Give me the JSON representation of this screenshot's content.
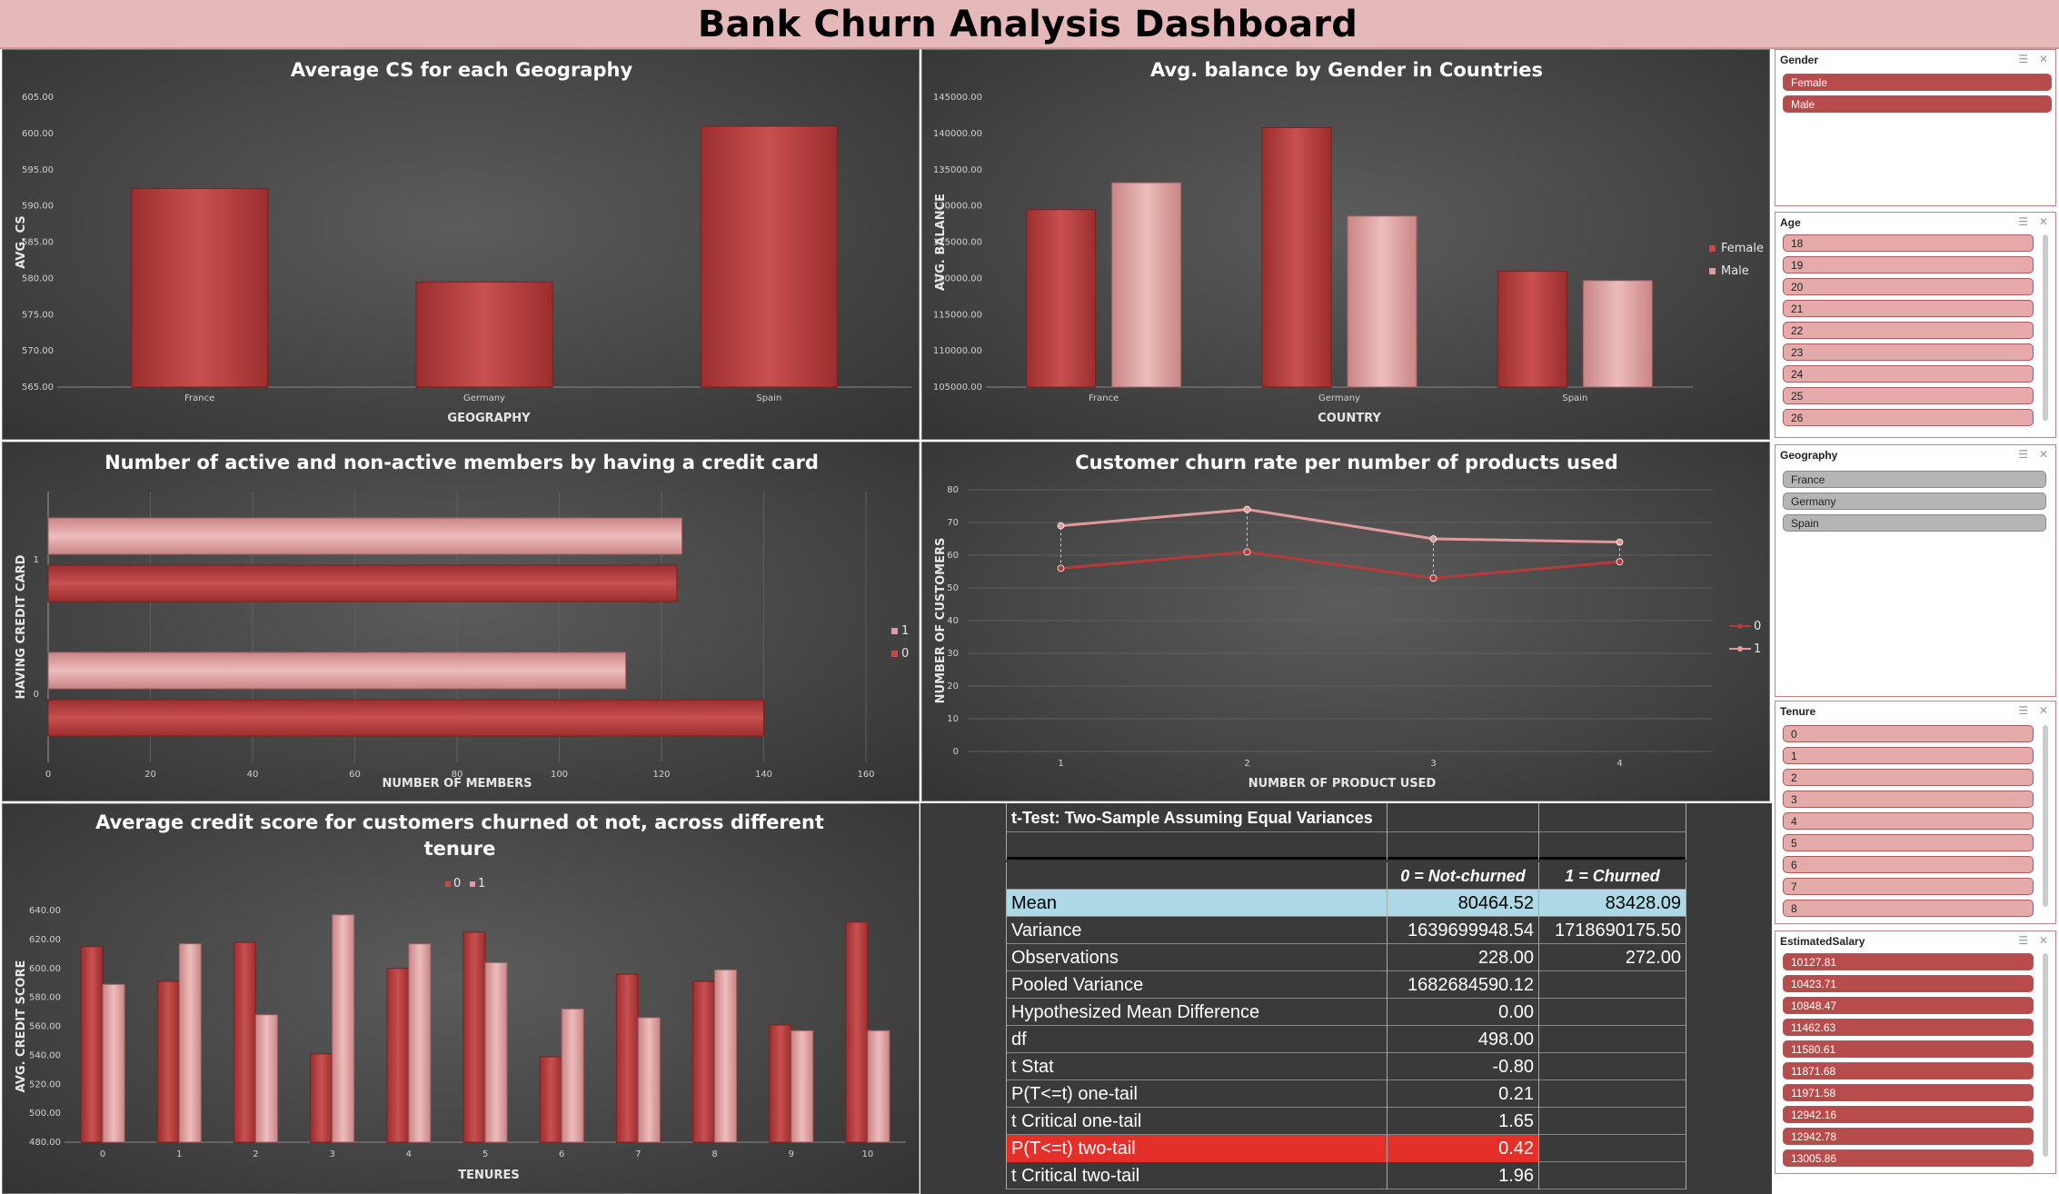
{
  "dashboard_title": "Bank Churn Analysis Dashboard",
  "colors": {
    "dark_red": "#b84040",
    "light_pink": "#dba0a0",
    "highlight_row": "#add8e6",
    "highlight_red": "#e5302a"
  },
  "chart_data": [
    {
      "type": "bar",
      "title": "Average CS for each Geography",
      "xlabel": "GEOGRAPHY",
      "ylabel": "AVG. CS",
      "categories": [
        "France",
        "Germany",
        "Spain"
      ],
      "values": [
        592.4,
        579.5,
        601.0
      ],
      "ylim": [
        565,
        605
      ],
      "yticks": [
        "565.00",
        "570.00",
        "575.00",
        "580.00",
        "585.00",
        "590.00",
        "595.00",
        "600.00",
        "605.00"
      ],
      "grid": false
    },
    {
      "type": "bar",
      "title": "Avg. balance by Gender in Countries",
      "xlabel": "COUNTRY",
      "ylabel": "AVG. BALANCE",
      "categories": [
        "France",
        "Germany",
        "Spain"
      ],
      "series": [
        {
          "name": "Female",
          "values": [
            129500,
            140800,
            121000
          ]
        },
        {
          "name": "Male",
          "values": [
            133200,
            128600,
            119700
          ]
        }
      ],
      "ylim": [
        105000,
        145000
      ],
      "yticks": [
        "105000.00",
        "110000.00",
        "115000.00",
        "120000.00",
        "125000.00",
        "130000.00",
        "135000.00",
        "140000.00",
        "145000.00"
      ],
      "legend": "right",
      "grid": false
    },
    {
      "type": "bar",
      "orientation": "horizontal",
      "title": "Number of active and non-active members by having a credit card",
      "xlabel": "NUMBER OF MEMBERS",
      "ylabel": "HAVING CREDIT CARD",
      "categories": [
        "0",
        "1"
      ],
      "series": [
        {
          "name": "1",
          "values": [
            113,
            124
          ]
        },
        {
          "name": "0",
          "values": [
            140,
            123
          ]
        }
      ],
      "xlim": [
        0,
        160
      ],
      "xticks": [
        "0",
        "20",
        "40",
        "60",
        "80",
        "100",
        "120",
        "140",
        "160"
      ],
      "legend": "right",
      "grid": true
    },
    {
      "type": "line",
      "title": "Customer churn rate per number of products used",
      "xlabel": "NUMBER OF PRODUCT USED",
      "ylabel": "NUMBER OF CUSTOMERS",
      "categories": [
        "1",
        "2",
        "3",
        "4"
      ],
      "series": [
        {
          "name": "0",
          "values": [
            56,
            61,
            53,
            58
          ]
        },
        {
          "name": "1",
          "values": [
            69,
            74,
            65,
            64
          ]
        }
      ],
      "ylim": [
        0,
        80
      ],
      "yticks": [
        "0",
        "10",
        "20",
        "30",
        "40",
        "50",
        "60",
        "70",
        "80"
      ],
      "legend": "right",
      "grid": true
    },
    {
      "type": "bar",
      "title": "Average credit score for customers churned ot not, across different tenure",
      "xlabel": "TENURES",
      "ylabel": "AVG. CREDIT SCORE",
      "categories": [
        "0",
        "1",
        "2",
        "3",
        "4",
        "5",
        "6",
        "7",
        "8",
        "9",
        "10"
      ],
      "series": [
        {
          "name": "0",
          "values": [
            615,
            591,
            618,
            541,
            600,
            625,
            539,
            596,
            591,
            561,
            632
          ]
        },
        {
          "name": "1",
          "values": [
            589,
            617,
            568,
            637,
            617,
            604,
            572,
            566,
            599,
            557,
            557
          ]
        }
      ],
      "ylim": [
        480,
        640
      ],
      "yticks": [
        "480.00",
        "500.00",
        "520.00",
        "540.00",
        "560.00",
        "580.00",
        "600.00",
        "620.00",
        "640.00"
      ],
      "legend": "top",
      "grid": false
    }
  ],
  "ttest": {
    "title": "t-Test: Two-Sample Assuming Equal Variances",
    "col1": "0 = Not-churned",
    "col2": "1 = Churned",
    "rows": [
      {
        "label": "Mean",
        "v1": "80464.52",
        "v2": "83428.09"
      },
      {
        "label": "Variance",
        "v1": "1639699948.54",
        "v2": "1718690175.50"
      },
      {
        "label": "Observations",
        "v1": "228.00",
        "v2": "272.00"
      },
      {
        "label": "Pooled Variance",
        "v1": "1682684590.12",
        "v2": ""
      },
      {
        "label": "Hypothesized Mean Difference",
        "v1": "0.00",
        "v2": ""
      },
      {
        "label": "df",
        "v1": "498.00",
        "v2": ""
      },
      {
        "label": "t Stat",
        "v1": "-0.80",
        "v2": ""
      },
      {
        "label": "P(T<=t) one-tail",
        "v1": "0.21",
        "v2": ""
      },
      {
        "label": "t Critical one-tail",
        "v1": "1.65",
        "v2": ""
      },
      {
        "label": "P(T<=t) two-tail",
        "v1": "0.42",
        "v2": ""
      },
      {
        "label": "t Critical two-tail",
        "v1": "1.96",
        "v2": ""
      }
    ]
  },
  "slicers": {
    "gender": {
      "title": "Gender",
      "items": [
        "Female",
        "Male"
      ]
    },
    "age": {
      "title": "Age",
      "items": [
        "18",
        "19",
        "20",
        "21",
        "22",
        "23",
        "24",
        "25",
        "26"
      ]
    },
    "geography": {
      "title": "Geography",
      "items": [
        "France",
        "Germany",
        "Spain"
      ]
    },
    "tenure": {
      "title": "Tenure",
      "items": [
        "0",
        "1",
        "2",
        "3",
        "4",
        "5",
        "6",
        "7",
        "8"
      ]
    },
    "salary": {
      "title": "EstimatedSalary",
      "items": [
        "10127.81",
        "10423.71",
        "10848.47",
        "11462.63",
        "11580.61",
        "11871.68",
        "11971.58",
        "12942.16",
        "12942.78",
        "13005.86"
      ]
    }
  }
}
